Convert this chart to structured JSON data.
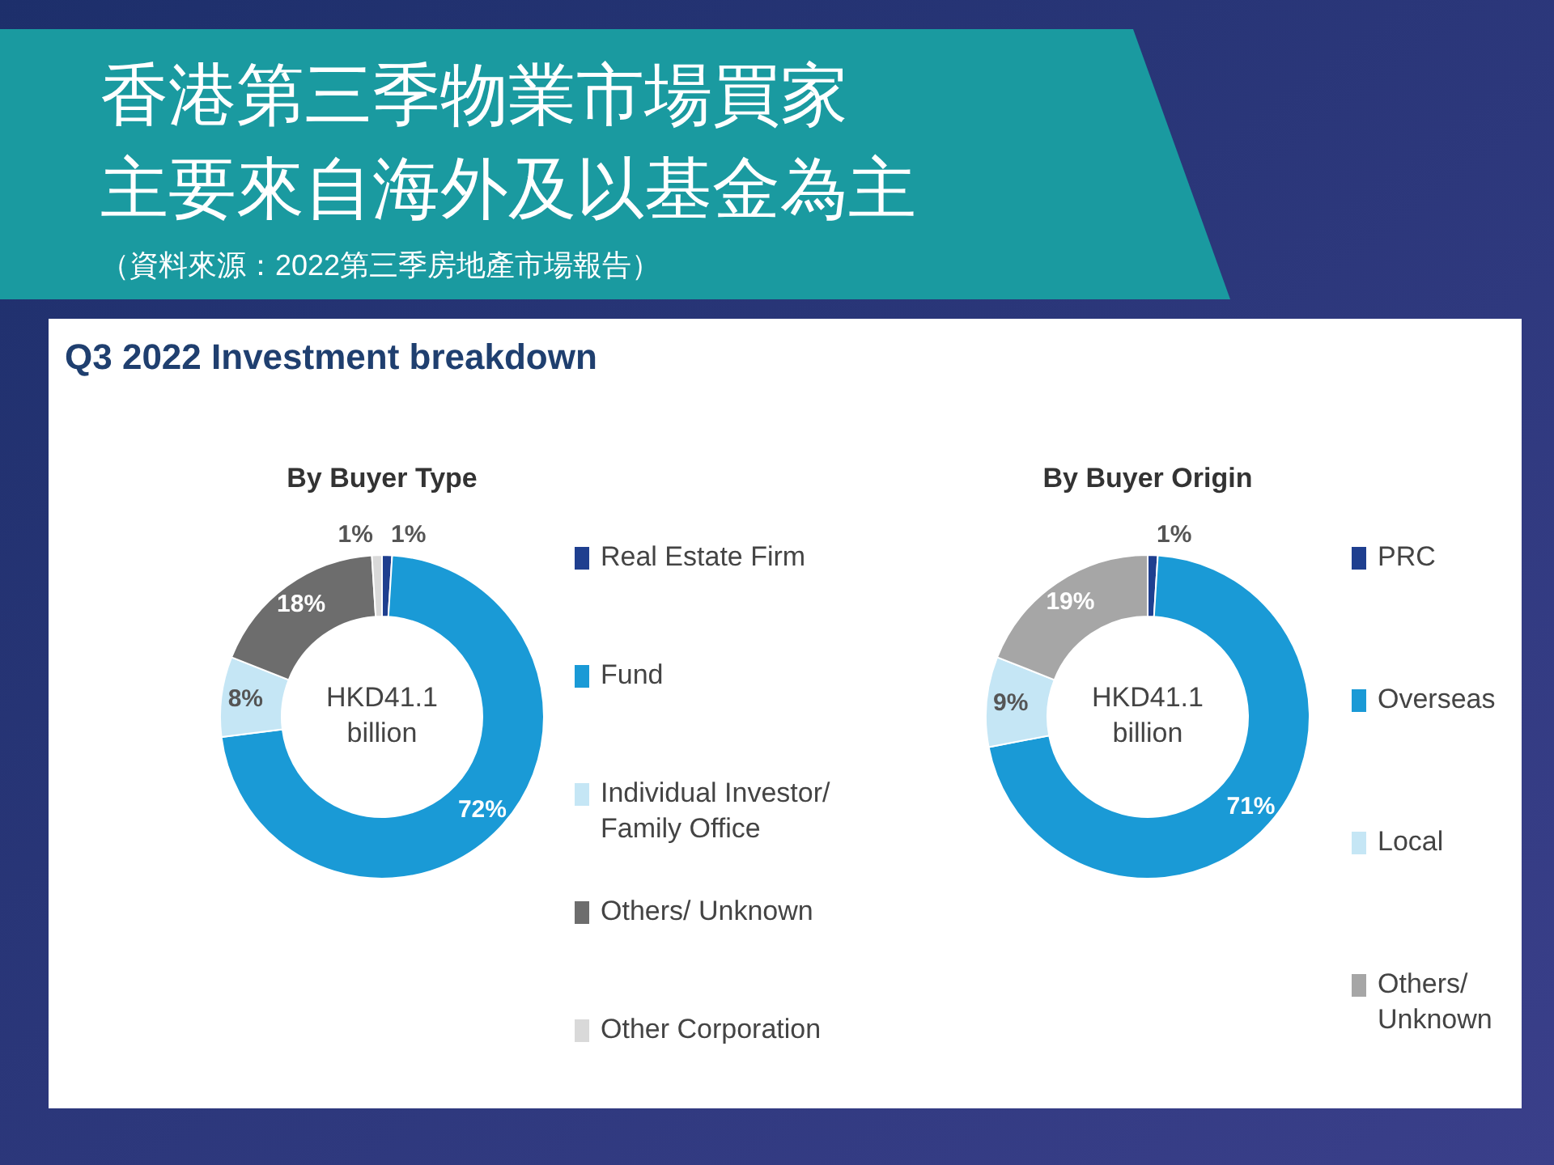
{
  "chart_data": [
    {
      "type": "donut",
      "title": "By Buyer Type",
      "annotations": [
        "香港第三季物業市場買家主要來自海外及以基金為主",
        "（資料來源：2022第三季房地產市場報告）",
        "Q3 2022 Investment breakdown",
        "HKD41.1 billion"
      ],
      "categories": [
        "Real Estate Firm",
        "Fund",
        "Individual Investor/ Family Office",
        "Others/ Unknown",
        "Other Corporation"
      ],
      "values": [
        1,
        72,
        8,
        18,
        1
      ],
      "value_labels": [
        "1%",
        "72%",
        "8%",
        "18%",
        "1%"
      ],
      "colors": [
        "#1f3f8f",
        "#1a9ad6",
        "#c5e6f5",
        "#6d6d6d",
        "#d9d9d9"
      ],
      "legend": "right"
    },
    {
      "type": "donut",
      "title": "By Buyer Origin",
      "annotations": [
        "HKD41.1 billion"
      ],
      "categories": [
        "PRC",
        "Overseas",
        "Local",
        "Others/ Unknown"
      ],
      "values": [
        1,
        71,
        9,
        19
      ],
      "value_labels": [
        "1%",
        "71%",
        "9%",
        "19%"
      ],
      "colors": [
        "#1f3f8f",
        "#1a9ad6",
        "#c5e6f5",
        "#a6a6a6"
      ],
      "legend": "right"
    }
  ]
}
